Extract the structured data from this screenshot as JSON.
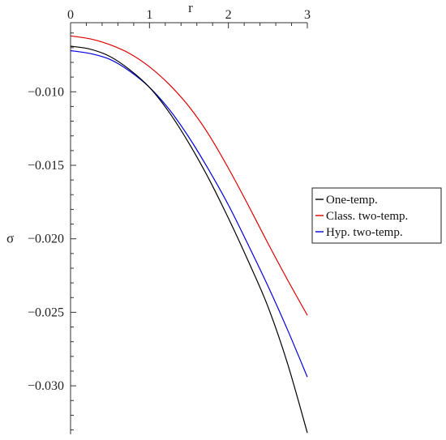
{
  "chart_data": {
    "type": "line",
    "xlabel": "r",
    "ylabel": "σ",
    "xlim": [
      0,
      3
    ],
    "ylim": [
      -0.0333,
      -0.0053
    ],
    "x_axis_position": "top",
    "x_ticks": [
      0,
      1,
      2,
      3
    ],
    "x_tick_labels": [
      "0",
      "1",
      "2",
      "3"
    ],
    "y_ticks": [
      -0.01,
      -0.015,
      -0.02,
      -0.025,
      -0.03
    ],
    "y_tick_labels": [
      "−0.010",
      "−0.015",
      "−0.020",
      "−0.025",
      "−0.030"
    ],
    "grid": false,
    "legend_position": "right",
    "series": [
      {
        "name": "One-temp.",
        "color": "#000000",
        "x": [
          0,
          0.25,
          0.5,
          0.75,
          1.0,
          1.25,
          1.5,
          1.75,
          2.0,
          2.25,
          2.5,
          2.75,
          3.0
        ],
        "values": [
          -0.0069,
          -0.0071,
          -0.0076,
          -0.0085,
          -0.0097,
          -0.0114,
          -0.0135,
          -0.0159,
          -0.0186,
          -0.0215,
          -0.0246,
          -0.0285,
          -0.0332
        ]
      },
      {
        "name": "Class. two-temp.",
        "color": "#e00000",
        "x": [
          0,
          0.25,
          0.5,
          0.75,
          1.0,
          1.25,
          1.5,
          1.75,
          2.0,
          2.25,
          2.5,
          2.75,
          3.0
        ],
        "values": [
          -0.0062,
          -0.0064,
          -0.0068,
          -0.0074,
          -0.0083,
          -0.0095,
          -0.011,
          -0.0129,
          -0.0152,
          -0.0177,
          -0.0203,
          -0.0228,
          -0.0252
        ]
      },
      {
        "name": "Hyp. two-temp.",
        "color": "#0000e0",
        "x": [
          0,
          0.25,
          0.5,
          0.75,
          1.0,
          1.25,
          1.5,
          1.75,
          2.0,
          2.25,
          2.5,
          2.75,
          3.0
        ],
        "values": [
          -0.0072,
          -0.0074,
          -0.0078,
          -0.0086,
          -0.0097,
          -0.0112,
          -0.0131,
          -0.0153,
          -0.0177,
          -0.0204,
          -0.0232,
          -0.0262,
          -0.0294
        ]
      }
    ]
  }
}
